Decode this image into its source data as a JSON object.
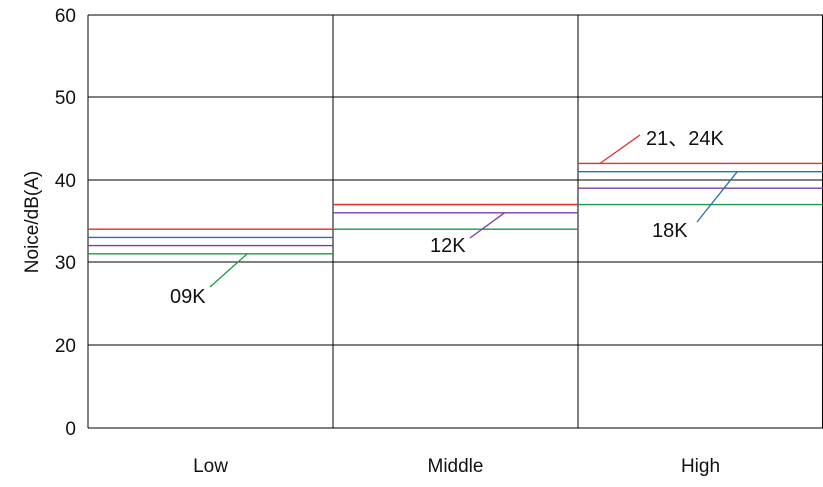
{
  "chart_data": {
    "type": "line",
    "ylabel": "Noice/dB(A)",
    "xlabel": "",
    "y_tick_labels": [
      "0",
      "20",
      "30",
      "40",
      "50",
      "60"
    ],
    "categories": [
      "Low",
      "Middle",
      "High"
    ],
    "grid": true,
    "series": [
      {
        "name": "09K",
        "color": "#1a9a4a",
        "values": [
          31,
          34,
          37
        ]
      },
      {
        "name": "12K",
        "color": "#7b3fa0",
        "values": [
          32,
          36,
          39
        ]
      },
      {
        "name": "18K",
        "color": "#2a6fb0",
        "values": [
          33,
          37,
          41
        ]
      },
      {
        "name": "21、24K",
        "color": "#e03030",
        "values": [
          34,
          37,
          42
        ]
      }
    ],
    "annotations": [
      {
        "text": "09K",
        "series": "09K",
        "category": "Low"
      },
      {
        "text": "12K",
        "series": "12K",
        "category": "Middle"
      },
      {
        "text": "21、24K",
        "series": "21、24K",
        "category": "High"
      },
      {
        "text": "18K",
        "series": "18K",
        "category": "High"
      }
    ]
  }
}
